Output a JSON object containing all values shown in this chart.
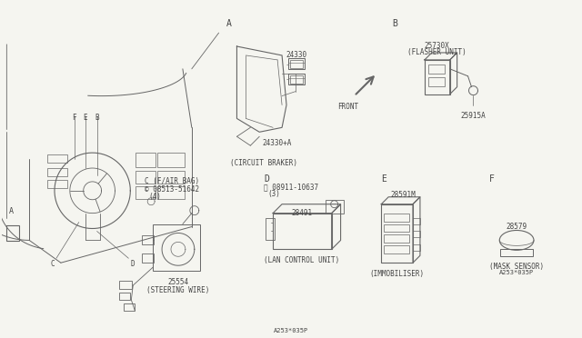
{
  "bg_color": "#f5f5f0",
  "line_color": "#666666",
  "text_color": "#444444",
  "labels": {
    "A_left": "A",
    "A_mid": "A",
    "B_label": "B",
    "D_label": "D",
    "E_label": "E",
    "F_label": "F",
    "FEB": "F  E  B",
    "circuit_label": "(CIRCUIT BRAKER)",
    "steering_label": "(STEERING WIRE)",
    "lan_label": "(LAN CONTROL UNIT)",
    "immob_label": "(IMMOBILISER)",
    "mask_label": "(MASK SENSOR)",
    "flasher_top": "25730X",
    "flasher_sub": "(FLASHER UNIT)",
    "front_label": "FRONT",
    "part_24330": "24330",
    "part_24330A": "24330+A",
    "part_25915A": "25915A",
    "part_25554": "25554",
    "part_28491": "28491",
    "part_28591M": "28591M",
    "part_28579": "28579",
    "part_C_top": "C (F/AIR BAG)",
    "part_C_num": "© 08513-51642",
    "part_C_sub": "(4)",
    "part_D_num": "Ⓝ 08911-10637",
    "part_D_sub": "(3)",
    "part_bottom": "A253*035P"
  }
}
